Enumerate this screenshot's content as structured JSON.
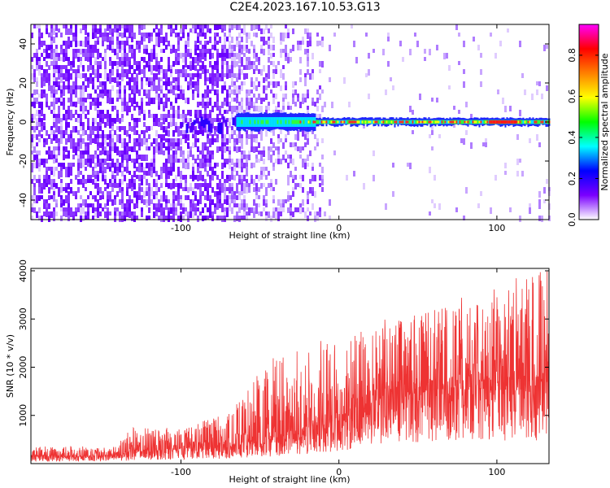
{
  "title": "C2E4.2023.167.10.53.G13",
  "chart_data": [
    {
      "type": "heatmap",
      "xlabel": "Height of straight line (km)",
      "ylabel": "Frequency (Hz)",
      "xlim": [
        -195,
        133
      ],
      "ylim": [
        -50,
        50
      ],
      "xticks": [
        -100,
        0,
        100
      ],
      "yticks": [
        -40,
        -20,
        0,
        20,
        40
      ],
      "colorbar": {
        "label": "Normalized spectral amplitude",
        "range": [
          0.0,
          0.95
        ],
        "ticks": [
          0.0,
          0.2,
          0.4,
          0.6,
          0.8
        ],
        "tick_labels": [
          "0.0",
          "0.2",
          "0.4",
          "0.6",
          "0.8"
        ],
        "colormap": [
          "#ffffff",
          "#7a00ff",
          "#0000ff",
          "#00ffff",
          "#00ff00",
          "#ffff00",
          "#ff8000",
          "#ff0000",
          "#ff00ff"
        ]
      },
      "features": {
        "noise_region_x": [
          -195,
          -10
        ],
        "signal_band_center_hz": 0,
        "signal_start_km": -65,
        "peak_amplitude": 0.85
      }
    },
    {
      "type": "line",
      "xlabel": "Height of straight line (km)",
      "ylabel": "SNR (10 * v/v)",
      "xlim": [
        -195,
        133
      ],
      "ylim": [
        0,
        4050
      ],
      "xticks": [
        -100,
        0,
        100
      ],
      "yticks": [
        1000,
        2000,
        3000,
        4000
      ],
      "color": "#ee3333",
      "trend": {
        "x": [
          -195,
          -140,
          -130,
          -100,
          -70,
          -40,
          -20,
          0,
          20,
          60,
          100,
          130
        ],
        "baseline": [
          150,
          150,
          250,
          280,
          350,
          500,
          650,
          800,
          1300,
          1500,
          1550,
          1600
        ],
        "envelope": [
          350,
          380,
          750,
          700,
          1100,
          2200,
          2400,
          2550,
          2850,
          3200,
          3500,
          4050
        ]
      }
    }
  ]
}
